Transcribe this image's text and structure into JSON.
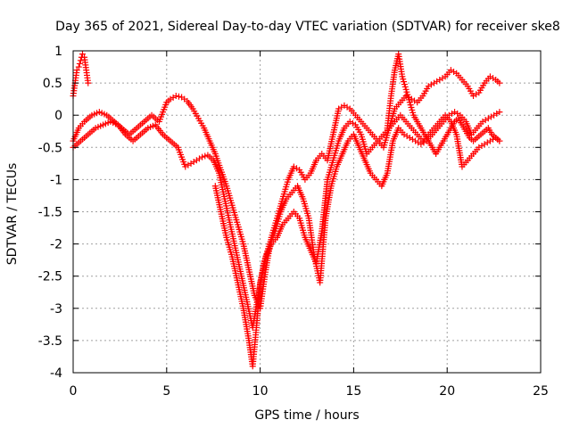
{
  "chart_data": {
    "type": "scatter",
    "title": "Day 365 of 2021, Sidereal Day-to-day VTEC variation (SDTVAR) for receiver ske8",
    "xlabel": "GPS time / hours",
    "ylabel": "SDTVAR / TECUs",
    "xlim": [
      0,
      25
    ],
    "ylim": [
      -4,
      1
    ],
    "xticks": [
      "0",
      "5",
      "10",
      "15",
      "20",
      "25"
    ],
    "yticks": [
      "1",
      "0.5",
      "0",
      "-0.5",
      "-1",
      "-1.5",
      "-2",
      "-2.5",
      "-3",
      "-3.5",
      "-4"
    ],
    "grid": true,
    "marker": "+",
    "color": "#ff0000",
    "series": [
      {
        "x": [
          0.0,
          0.1,
          0.2,
          0.3,
          0.4,
          0.5,
          0.6,
          0.7,
          0.8
        ],
        "y": [
          0.3,
          0.5,
          0.7,
          0.75,
          0.85,
          0.95,
          0.9,
          0.7,
          0.5
        ]
      },
      {
        "x": [
          0.0,
          0.3,
          0.6,
          1.0,
          1.4,
          1.8,
          2.2,
          2.6,
          3.0,
          3.4,
          3.8,
          4.2,
          4.6,
          5.0,
          5.2,
          5.5,
          5.8,
          6.1,
          6.4,
          6.7,
          7.0,
          7.3,
          7.6,
          7.9,
          8.2,
          8.5,
          8.8,
          9.1,
          9.4,
          9.7,
          10.0,
          10.3,
          10.6,
          10.9,
          11.2,
          11.5,
          11.8,
          12.1,
          12.4,
          12.7,
          13.0,
          13.3,
          13.6,
          13.9,
          14.2,
          14.5,
          14.8,
          15.1,
          15.4,
          15.7,
          16.0,
          16.3,
          16.6,
          16.9,
          17.2,
          17.5,
          17.8,
          18.1,
          18.4,
          18.7,
          19.0,
          19.3,
          19.6,
          19.9,
          20.2,
          20.5,
          20.8,
          21.1,
          21.4,
          21.7,
          22.0,
          22.3,
          22.6,
          22.8
        ],
        "y": [
          -0.4,
          -0.2,
          -0.1,
          0.0,
          0.05,
          0.0,
          -0.1,
          -0.2,
          -0.3,
          -0.2,
          -0.1,
          0.0,
          -0.1,
          0.2,
          0.25,
          0.3,
          0.28,
          0.22,
          0.1,
          -0.05,
          -0.2,
          -0.4,
          -0.6,
          -0.85,
          -1.1,
          -1.4,
          -1.7,
          -2.0,
          -2.4,
          -2.8,
          -3.0,
          -2.4,
          -1.9,
          -1.6,
          -1.3,
          -1.0,
          -0.8,
          -0.85,
          -1.0,
          -0.9,
          -0.7,
          -0.6,
          -0.7,
          -0.3,
          0.1,
          0.15,
          0.1,
          0.0,
          -0.1,
          -0.2,
          -0.3,
          -0.4,
          -0.5,
          -0.2,
          0.1,
          0.2,
          0.3,
          0.25,
          0.2,
          0.3,
          0.45,
          0.5,
          0.55,
          0.6,
          0.7,
          0.65,
          0.55,
          0.45,
          0.3,
          0.35,
          0.5,
          0.6,
          0.55,
          0.5
        ]
      },
      {
        "x": [
          0.0,
          0.4,
          0.8,
          1.2,
          1.6,
          2.0,
          2.4,
          2.8,
          3.2,
          3.6,
          4.0,
          4.4,
          4.8,
          5.2,
          5.6,
          6.0,
          6.3,
          6.6,
          6.9,
          7.2,
          7.5,
          7.8,
          8.1,
          8.4,
          8.7,
          9.0,
          9.3,
          9.6,
          9.9,
          10.2,
          10.5,
          10.8,
          11.1,
          11.4,
          11.7,
          12.0,
          12.3,
          12.6,
          12.9,
          13.2,
          13.5,
          13.8,
          14.1,
          14.4,
          14.7,
          15.0,
          15.3,
          15.6,
          15.9,
          16.2,
          16.5,
          16.8,
          17.1,
          17.4,
          17.7,
          18.0,
          18.3,
          18.6,
          18.9,
          19.2,
          19.5,
          19.8,
          20.1,
          20.4,
          20.7,
          21.0,
          21.3,
          21.6,
          21.9,
          22.2,
          22.5,
          22.8
        ],
        "y": [
          -0.5,
          -0.4,
          -0.3,
          -0.2,
          -0.15,
          -0.1,
          -0.15,
          -0.3,
          -0.4,
          -0.3,
          -0.2,
          -0.15,
          -0.3,
          -0.4,
          -0.5,
          -0.8,
          -0.75,
          -0.7,
          -0.65,
          -0.62,
          -0.7,
          -0.9,
          -1.3,
          -1.7,
          -2.1,
          -2.5,
          -2.9,
          -3.3,
          -2.8,
          -2.3,
          -2.0,
          -1.8,
          -1.5,
          -1.3,
          -1.2,
          -1.1,
          -1.3,
          -1.6,
          -2.2,
          -2.6,
          -1.6,
          -1.1,
          -0.8,
          -0.6,
          -0.4,
          -0.3,
          -0.5,
          -0.7,
          -0.9,
          -1.0,
          -1.1,
          -0.9,
          -0.4,
          -0.2,
          -0.3,
          -0.35,
          -0.4,
          -0.45,
          -0.4,
          -0.3,
          -0.2,
          -0.1,
          0.0,
          0.05,
          0.0,
          -0.1,
          -0.3,
          -0.2,
          -0.1,
          -0.05,
          0.0,
          0.05
        ]
      },
      {
        "x": [
          7.6,
          7.9,
          8.2,
          8.5,
          8.8,
          9.1,
          9.4,
          9.6,
          9.8,
          10.0,
          10.3,
          10.6,
          10.9,
          11.2,
          11.5,
          11.8,
          12.1,
          12.4,
          12.7,
          13.0,
          13.3,
          13.6,
          13.9,
          14.2,
          14.5,
          14.8,
          15.1,
          15.4,
          15.7,
          16.0,
          16.3,
          16.6,
          16.9,
          17.2,
          17.5,
          17.8,
          18.1,
          18.4,
          18.7,
          19.0,
          19.3,
          19.6,
          19.9,
          20.2,
          20.5,
          20.8,
          21.1,
          21.4,
          21.7,
          22.0,
          22.3,
          22.6,
          22.8
        ],
        "y": [
          -1.1,
          -1.5,
          -1.9,
          -2.2,
          -2.6,
          -3.0,
          -3.5,
          -3.9,
          -3.3,
          -2.6,
          -2.2,
          -2.0,
          -1.9,
          -1.7,
          -1.6,
          -1.5,
          -1.6,
          -1.9,
          -2.1,
          -2.3,
          -1.8,
          -1.0,
          -0.7,
          -0.4,
          -0.2,
          -0.1,
          -0.15,
          -0.3,
          -0.6,
          -0.5,
          -0.4,
          -0.3,
          -0.2,
          -0.1,
          0.0,
          -0.1,
          -0.2,
          -0.3,
          -0.4,
          -0.3,
          -0.2,
          -0.1,
          0.0,
          -0.1,
          -0.3,
          -0.8,
          -0.7,
          -0.6,
          -0.5,
          -0.45,
          -0.4,
          -0.35,
          -0.4
        ]
      },
      {
        "x": [
          16.8,
          17.0,
          17.2,
          17.4,
          17.6,
          17.8,
          18.0,
          18.2,
          18.4,
          18.6,
          18.8,
          19.0,
          19.2,
          19.4,
          19.6,
          19.8,
          20.0,
          20.2,
          20.4,
          20.6,
          20.8,
          21.0,
          21.2,
          21.4,
          21.6,
          21.8,
          22.0,
          22.2,
          22.4,
          22.6,
          22.8
        ],
        "y": [
          -0.2,
          0.3,
          0.7,
          0.95,
          0.6,
          0.4,
          0.2,
          0.0,
          -0.1,
          -0.2,
          -0.3,
          -0.4,
          -0.5,
          -0.6,
          -0.5,
          -0.4,
          -0.3,
          -0.2,
          -0.1,
          -0.05,
          -0.15,
          -0.25,
          -0.35,
          -0.4,
          -0.35,
          -0.3,
          -0.25,
          -0.2,
          -0.3,
          -0.35,
          -0.4
        ]
      }
    ]
  }
}
